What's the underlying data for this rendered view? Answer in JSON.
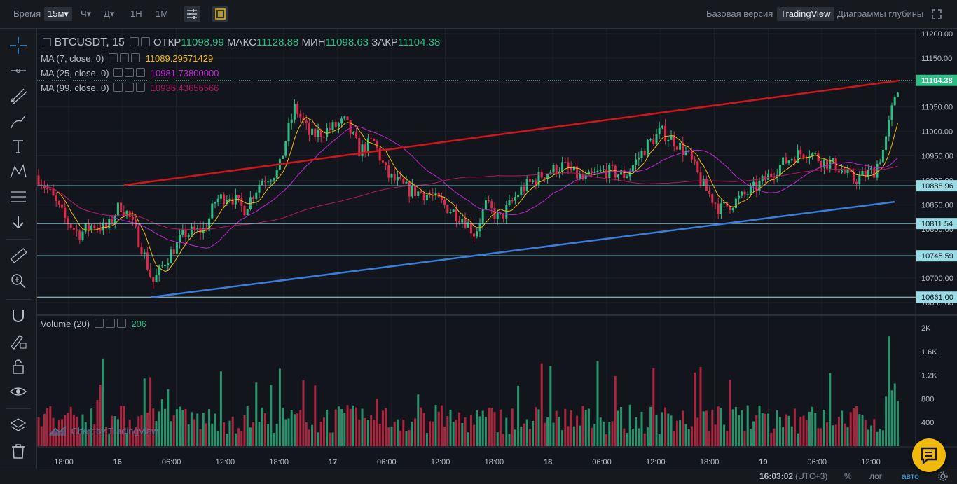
{
  "topbar": {
    "time_label": "Время",
    "intervals": [
      "15м",
      "Ч",
      "Д",
      "1Н",
      "1М"
    ],
    "active_interval": "15м",
    "views": [
      "Базовая версия",
      "TradingView",
      "Диаграммы глубины"
    ],
    "active_view": "TradingView"
  },
  "legend": {
    "symbol": "BTCUSDT, 15",
    "open_label": "ОТКР",
    "open": "11098.99",
    "high_label": "МАКС",
    "high": "11128.88",
    "low_label": "МИН",
    "low": "11098.63",
    "close_label": "ЗАКР",
    "close": "11104.38",
    "ma7_label": "MA (7, close, 0)",
    "ma7": "11089.29571429",
    "ma25_label": "MA (25, close, 0)",
    "ma25": "10981.73800000",
    "ma99_label": "MA (99, close, 0)",
    "ma99": "10936.43656566",
    "volume_label": "Volume (20)",
    "volume": "206"
  },
  "colors": {
    "up": "#2ebd85",
    "down": "#e0294a",
    "ma7": "#f0b90b",
    "ma25": "#c026d3",
    "ma99": "#b0195e",
    "red_line": "#d1151b",
    "blue_line": "#3b7ddd",
    "hline": "#9adbe6"
  },
  "price_axis": {
    "labels": [
      "11200.00",
      "11150.00",
      "11100.00",
      "11050.00",
      "11000.00",
      "10950.00",
      "10900.00",
      "10850.00",
      "10800.00",
      "10750.00",
      "10700.00",
      "10650.00"
    ],
    "min": 10650,
    "max": 11200
  },
  "price_tags": [
    {
      "label": "11104.38",
      "value": 11104.38,
      "type": "current"
    },
    {
      "label": "10888.96",
      "value": 10888.96,
      "type": "h"
    },
    {
      "label": "10811.54",
      "value": 10811.54,
      "type": "h"
    },
    {
      "label": "10745.59",
      "value": 10745.59,
      "type": "h"
    },
    {
      "label": "10661.00",
      "value": 10661.0,
      "type": "h"
    }
  ],
  "volume_axis": {
    "labels": [
      "2K",
      "1.6K",
      "1.2K",
      "800",
      "400"
    ],
    "values": [
      2000,
      1600,
      1200,
      800,
      400
    ]
  },
  "time_axis": [
    "18:00",
    "16",
    "06:00",
    "12:00",
    "18:00",
    "17",
    "06:00",
    "12:00",
    "18:00",
    "18",
    "06:00",
    "12:00",
    "18:00",
    "19",
    "06:00",
    "12:00"
  ],
  "watermark": "Chart by TradingView",
  "bottombar": {
    "clock": "16:03:02",
    "tz": "(UTC+3)",
    "percent": "%",
    "log": "лог",
    "auto": "авто"
  }
}
